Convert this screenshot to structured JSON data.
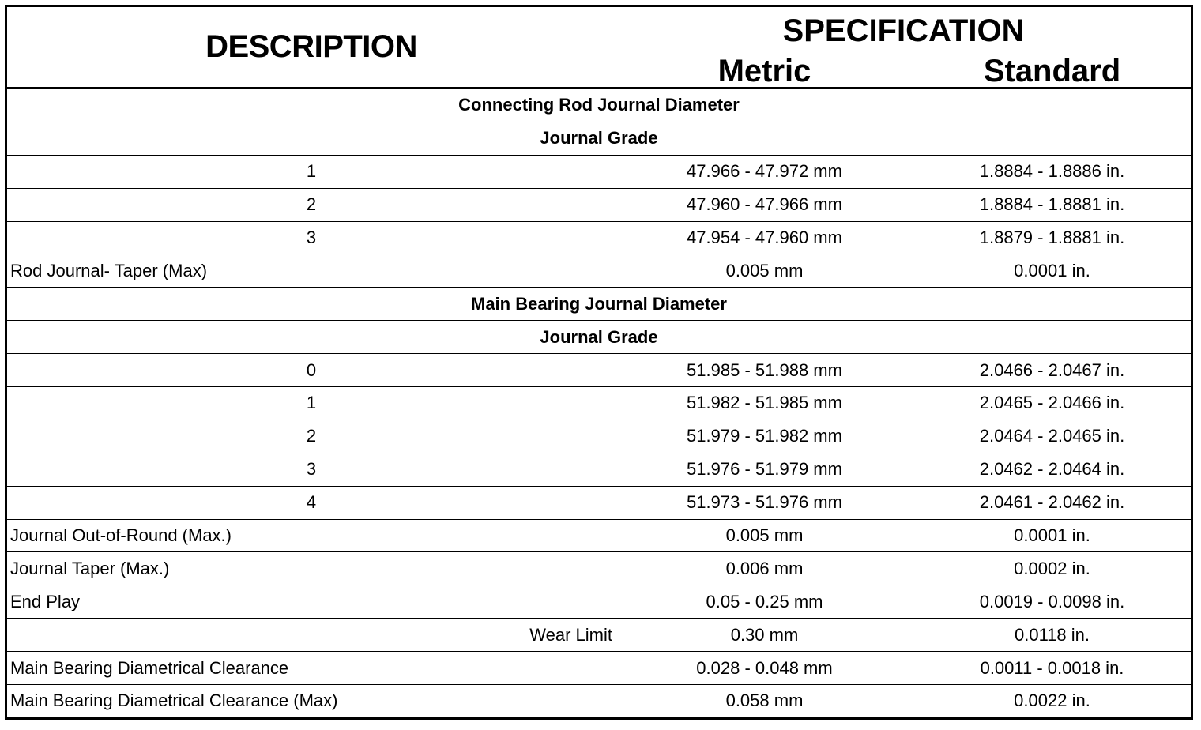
{
  "header": {
    "description": "DESCRIPTION",
    "specification": "SPECIFICATION",
    "metric": "Metric",
    "standard": "Standard"
  },
  "rows": [
    {
      "type": "section",
      "label": "Connecting Rod Journal Diameter"
    },
    {
      "type": "section",
      "label": "Journal Grade"
    },
    {
      "type": "grade",
      "label": "1",
      "metric": "47.966 - 47.972 mm",
      "standard": "1.8884 - 1.8886 in."
    },
    {
      "type": "grade",
      "label": "2",
      "metric": "47.960 - 47.966 mm",
      "standard": "1.8884 - 1.8881 in."
    },
    {
      "type": "grade",
      "label": "3",
      "metric": "47.954 - 47.960 mm",
      "standard": "1.8879 - 1.8881 in."
    },
    {
      "type": "item",
      "label": "Rod Journal- Taper (Max)",
      "metric": "0.005 mm",
      "standard": "0.0001 in."
    },
    {
      "type": "section",
      "label": "Main Bearing Journal Diameter"
    },
    {
      "type": "section",
      "label": "Journal Grade"
    },
    {
      "type": "grade",
      "label": "0",
      "metric": "51.985 - 51.988 mm",
      "standard": "2.0466 - 2.0467 in."
    },
    {
      "type": "grade",
      "label": "1",
      "metric": "51.982 - 51.985 mm",
      "standard": "2.0465 - 2.0466 in."
    },
    {
      "type": "grade",
      "label": "2",
      "metric": "51.979 - 51.982 mm",
      "standard": "2.0464 - 2.0465 in."
    },
    {
      "type": "grade",
      "label": "3",
      "metric": "51.976 - 51.979 mm",
      "standard": "2.0462 - 2.0464 in."
    },
    {
      "type": "grade",
      "label": "4",
      "metric": "51.973 - 51.976 mm",
      "standard": "2.0461 - 2.0462 in."
    },
    {
      "type": "item",
      "label": "Journal Out-of-Round (Max.)",
      "metric": "0.005 mm",
      "standard": "0.0001 in."
    },
    {
      "type": "item",
      "label": "Journal Taper (Max.)",
      "metric": "0.006 mm",
      "standard": "0.0002 in."
    },
    {
      "type": "item",
      "label": "End Play",
      "metric": "0.05 - 0.25 mm",
      "standard": "0.0019 - 0.0098 in."
    },
    {
      "type": "right",
      "label": "Wear Limit",
      "metric": "0.30 mm",
      "standard": "0.0118 in."
    },
    {
      "type": "item",
      "label": "Main Bearing Diametrical Clearance",
      "metric": "0.028 - 0.048 mm",
      "standard": "0.0011 - 0.0018 in."
    },
    {
      "type": "item",
      "label": "Main Bearing Diametrical Clearance (Max)",
      "metric": "0.058 mm",
      "standard": "0.0022 in."
    }
  ]
}
